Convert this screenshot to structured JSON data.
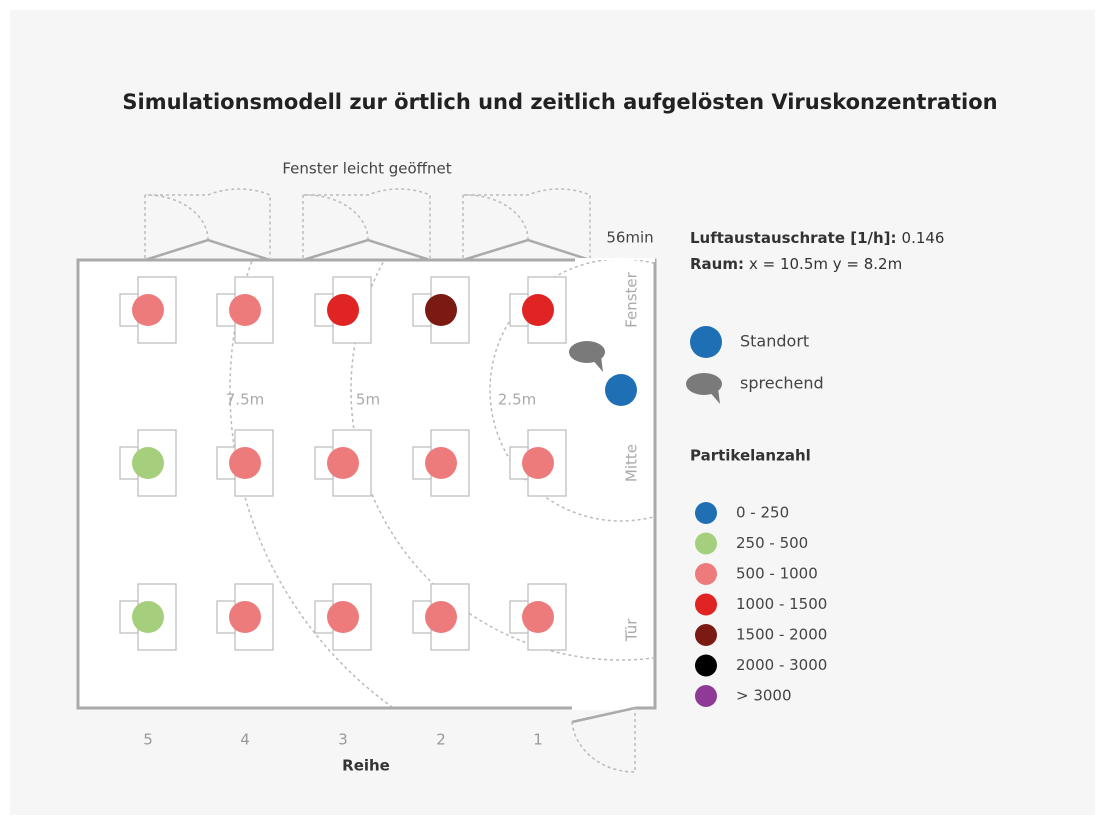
{
  "title": "Simulationsmodell zur örtlich und zeitlich aufgelösten Viruskonzentration",
  "window_label": "Fenster leicht geöffnet",
  "time": "56min",
  "info": [
    {
      "label": "Luftaustauschrate [1/h]:",
      "value": "0.146"
    },
    {
      "label": "Raum:",
      "value": "x = 10.5m y = 8.2m"
    }
  ],
  "zones": [
    "Fenster",
    "Mitte",
    "Tür"
  ],
  "distances": [
    "7.5m",
    "5m",
    "2.5m"
  ],
  "rows_label": "Reihe",
  "rows": [
    "5",
    "4",
    "3",
    "2",
    "1"
  ],
  "seats": [
    [
      "#ee7b7b",
      "#ee7b7b",
      "#e02424",
      "#7a1a12",
      "#e02424"
    ],
    [
      "#a5cf7c",
      "#ee7b7b",
      "#ee7b7b",
      "#ee7b7b",
      "#ee7b7b"
    ],
    [
      "#a5cf7c",
      "#ee7b7b",
      "#ee7b7b",
      "#ee7b7b",
      "#ee7b7b"
    ]
  ],
  "markers": [
    {
      "label": "Standort",
      "color": "#1f6fb5"
    },
    {
      "label": "sprechend",
      "color": "#7a7a7a"
    }
  ],
  "legend": {
    "title": "Partikelanzahl",
    "items": [
      {
        "label": "0 - 250",
        "color": "#1f6fb5"
      },
      {
        "label": "250 - 500",
        "color": "#a5cf7c"
      },
      {
        "label": "500 - 1000",
        "color": "#ee7b7b"
      },
      {
        "label": "1000 - 1500",
        "color": "#e02424"
      },
      {
        "label": "1500 - 2000",
        "color": "#7a1a12"
      },
      {
        "label": "2000 - 3000",
        "color": "#000000"
      },
      {
        "label": "> 3000",
        "color": "#8e3a96"
      }
    ]
  }
}
